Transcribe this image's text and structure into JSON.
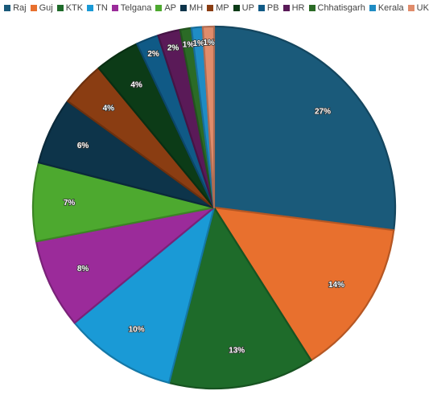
{
  "chart_data": {
    "type": "pie",
    "categories": [
      "Raj",
      "Guj",
      "KTK",
      "TN",
      "Telgana",
      "AP",
      "MH",
      "MP",
      "UP",
      "PB",
      "HR",
      "Chhatisgarh",
      "Kerala",
      "UK"
    ],
    "values": [
      27,
      14,
      13,
      10,
      8,
      7,
      6,
      4,
      4,
      2,
      2,
      1,
      1,
      1
    ],
    "labels": [
      "27%",
      "14%",
      "13%",
      "10%",
      "8%",
      "7%",
      "6%",
      "4%",
      "4%",
      "2%",
      "2%",
      "1%",
      "1%",
      "1%"
    ],
    "colors": [
      "#1a5a7a",
      "#e8702e",
      "#1e6b2a",
      "#1a9ad6",
      "#9b2b9a",
      "#4da92f",
      "#0d344a",
      "#8a3d12",
      "#0c3b17",
      "#105a86",
      "#5a1a58",
      "#2b6b26",
      "#1f8cc4",
      "#e08c6b"
    ],
    "legend_position": "top"
  }
}
